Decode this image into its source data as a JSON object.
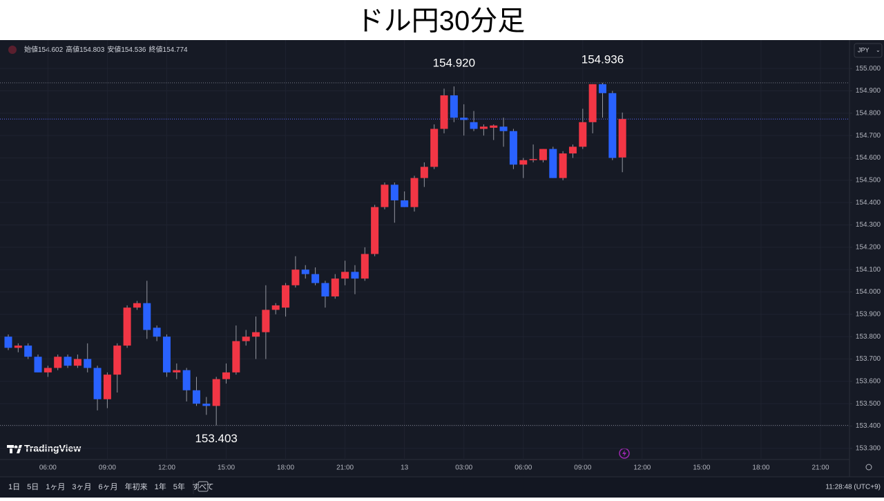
{
  "chart_data": {
    "type": "candlestick",
    "title": "ドル円30分足",
    "header": [
      {
        "label": "始値",
        "value": "154.602"
      },
      {
        "label": "高値",
        "value": "154.803"
      },
      {
        "label": "安値",
        "value": "154.536"
      },
      {
        "label": "終値",
        "value": "154.774"
      }
    ],
    "currency": "JPY",
    "brand": "TradingView",
    "ranges": [
      "1日",
      "5日",
      "1ヶ月",
      "3ヶ月",
      "6ヶ月",
      "年初来",
      "1年",
      "5年",
      "すべて"
    ],
    "clock": "11:28:48 (UTC+9)",
    "up_color": "#f23645",
    "down_color": "#2962ff",
    "wick_color": "#9598a1",
    "grid": true,
    "categories": [
      null,
      null,
      null,
      null,
      "06:00",
      null,
      null,
      null,
      null,
      null,
      "09:00",
      null,
      null,
      null,
      null,
      null,
      "12:00",
      null,
      null,
      null,
      null,
      null,
      "15:00",
      null,
      null,
      null,
      null,
      null,
      "18:00",
      null,
      null,
      null,
      null,
      null,
      "21:00",
      null,
      null,
      null,
      null,
      null,
      "13",
      null,
      null,
      null,
      null,
      null,
      "03:00",
      null,
      null,
      null,
      null,
      null,
      "06:00",
      null,
      null,
      null,
      null,
      null,
      "09:00",
      null,
      null,
      null,
      null,
      null,
      "12:00",
      null,
      null,
      null,
      null,
      null,
      "15:00",
      null,
      null,
      null,
      null,
      null,
      "18:00",
      null,
      null,
      null,
      null,
      null,
      "21:00"
    ],
    "open": [
      153.8,
      153.75,
      153.76,
      153.71,
      153.64,
      153.66,
      153.71,
      153.67,
      153.7,
      153.66,
      153.52,
      153.63,
      153.76,
      153.93,
      153.95,
      153.84,
      153.8,
      153.64,
      153.65,
      153.56,
      153.5,
      153.49,
      153.61,
      153.64,
      153.78,
      153.8,
      153.82,
      153.92,
      153.93,
      154.03,
      154.1,
      154.08,
      154.04,
      153.98,
      154.06,
      154.09,
      154.06,
      154.17,
      154.38,
      154.48,
      154.41,
      154.38,
      154.51,
      154.56,
      154.73,
      154.88,
      154.78,
      154.76,
      154.73,
      154.735,
      154.74,
      154.72,
      154.57,
      154.59,
      154.59,
      154.64,
      154.51,
      154.62,
      154.65,
      154.76,
      154.93,
      154.89,
      154.602,
      null,
      null,
      null,
      null,
      null,
      null,
      null,
      null,
      null,
      null,
      null,
      null,
      null,
      null,
      null,
      null,
      null,
      null,
      null,
      null
    ],
    "high": [
      153.81,
      153.77,
      153.77,
      153.72,
      153.67,
      153.72,
      153.72,
      153.72,
      153.77,
      153.67,
      153.64,
      153.77,
      153.94,
      153.96,
      154.05,
      153.85,
      153.81,
      153.68,
      153.66,
      153.62,
      153.53,
      153.62,
      153.68,
      153.85,
      153.83,
      153.89,
      154.03,
      153.95,
      154.04,
      154.16,
      154.12,
      154.11,
      154.05,
      154.08,
      154.14,
      154.12,
      154.2,
      154.39,
      154.49,
      154.49,
      154.45,
      154.52,
      154.58,
      154.75,
      154.91,
      154.92,
      154.84,
      154.81,
      154.75,
      154.75,
      154.78,
      154.73,
      154.6,
      154.66,
      154.64,
      154.65,
      154.63,
      154.66,
      154.82,
      154.93,
      154.936,
      154.9,
      154.803,
      null,
      null,
      null,
      null,
      null,
      null,
      null,
      null,
      null,
      null,
      null,
      null,
      null,
      null,
      null,
      null,
      null,
      null,
      null,
      null
    ],
    "low": [
      153.74,
      153.73,
      153.7,
      153.64,
      153.62,
      153.65,
      153.66,
      153.66,
      153.64,
      153.47,
      153.48,
      153.55,
      153.75,
      153.92,
      153.79,
      153.78,
      153.62,
      153.61,
      153.51,
      153.49,
      153.45,
      153.403,
      153.59,
      153.63,
      153.76,
      153.7,
      153.7,
      153.9,
      153.89,
      154.02,
      154.06,
      154.03,
      153.93,
      153.97,
      154.03,
      153.99,
      154.05,
      154.16,
      154.37,
      154.31,
      154.38,
      154.36,
      154.47,
      154.55,
      154.71,
      154.76,
      154.7,
      154.72,
      154.7,
      154.68,
      154.65,
      154.55,
      154.51,
      154.58,
      154.58,
      154.51,
      154.5,
      154.6,
      154.64,
      154.71,
      154.78,
      154.59,
      154.536,
      null,
      null,
      null,
      null,
      null,
      null,
      null,
      null,
      null,
      null,
      null,
      null,
      null,
      null,
      null,
      null,
      null,
      null,
      null,
      null
    ],
    "close": [
      153.75,
      153.76,
      153.71,
      153.64,
      153.66,
      153.71,
      153.67,
      153.7,
      153.66,
      153.52,
      153.63,
      153.76,
      153.93,
      153.95,
      153.83,
      153.8,
      153.64,
      153.65,
      153.56,
      153.5,
      153.49,
      153.61,
      153.64,
      153.78,
      153.8,
      153.82,
      153.92,
      153.94,
      154.03,
      154.1,
      154.08,
      154.04,
      153.98,
      154.06,
      154.09,
      154.06,
      154.17,
      154.38,
      154.48,
      154.41,
      154.38,
      154.51,
      154.56,
      154.73,
      154.88,
      154.78,
      154.77,
      154.73,
      154.74,
      154.745,
      154.72,
      154.57,
      154.59,
      154.595,
      154.64,
      154.51,
      154.62,
      154.65,
      154.76,
      154.93,
      154.89,
      154.6,
      154.774,
      null,
      null,
      null,
      null,
      null,
      null,
      null,
      null,
      null,
      null,
      null,
      null,
      null,
      null,
      null,
      null,
      null,
      null,
      null,
      null
    ],
    "ylim": [
      153.25,
      155.115
    ],
    "yticks": [
      {
        "value": 153.3,
        "label": "153.300"
      },
      {
        "value": 153.4,
        "label": "153.400"
      },
      {
        "value": 153.5,
        "label": "153.500"
      },
      {
        "value": 153.6,
        "label": "153.600"
      },
      {
        "value": 153.7,
        "label": "153.700"
      },
      {
        "value": 153.8,
        "label": "153.800"
      },
      {
        "value": 153.9,
        "label": "153.900"
      },
      {
        "value": 154,
        "label": "154.000"
      },
      {
        "value": 154.1,
        "label": "154.100"
      },
      {
        "value": 154.2,
        "label": "154.200"
      },
      {
        "value": 154.3,
        "label": "154.300"
      },
      {
        "value": 154.4,
        "label": "154.400"
      },
      {
        "value": 154.5,
        "label": "154.500"
      },
      {
        "value": 154.6,
        "label": "154.600"
      },
      {
        "value": 154.7,
        "label": "154.700"
      },
      {
        "value": 154.8,
        "label": "154.800"
      },
      {
        "value": 154.9,
        "label": "154.900"
      },
      {
        "value": 155,
        "label": "155.000"
      }
    ],
    "annotations": [
      {
        "value": 154.92,
        "label": "154.920",
        "guide": false
      },
      {
        "value": 154.936,
        "label": "154.936",
        "guide": true
      },
      {
        "value": 153.403,
        "label": "153.403",
        "guide": true
      }
    ]
  }
}
